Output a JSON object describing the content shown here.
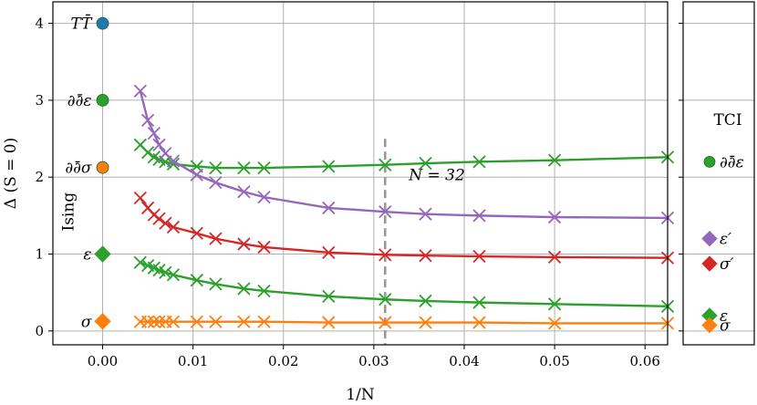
{
  "chart_data": {
    "type": "line",
    "xlabel": "1/N",
    "ylabel": "Δ  (S = 0)",
    "xlim": [
      -0.0055,
      0.0625
    ],
    "ylim": [
      -0.18,
      4.28
    ],
    "x_ticks": [
      0.0,
      0.01,
      0.02,
      0.03,
      0.04,
      0.05,
      0.06
    ],
    "x_tick_labels": [
      "0.00",
      "0.01",
      "0.02",
      "0.03",
      "0.04",
      "0.05",
      "0.06"
    ],
    "y_ticks": [
      0,
      1,
      2,
      3,
      4
    ],
    "y_tick_labels": [
      "0",
      "1",
      "2",
      "3",
      "4"
    ],
    "grid": true,
    "vline": {
      "x": 0.03125,
      "label": "N = 32"
    },
    "ising_label": "Ising",
    "colors": {
      "blue": "#1f77b4",
      "orange": "#ff7f0e",
      "green": "#2ca02c",
      "red": "#d62728",
      "purple": "#9467bd",
      "gray": "#999999"
    },
    "x": [
      0.004167,
      0.005,
      0.005682,
      0.00625,
      0.006944,
      0.007813,
      0.010417,
      0.0125,
      0.015625,
      0.017857,
      0.025,
      0.03125,
      0.035714,
      0.041667,
      0.05,
      0.0625
    ],
    "series": [
      {
        "color": "orange",
        "values": [
          0.12,
          0.12,
          0.12,
          0.12,
          0.12,
          0.12,
          0.12,
          0.12,
          0.12,
          0.12,
          0.11,
          0.11,
          0.11,
          0.11,
          0.1,
          0.1
        ]
      },
      {
        "color": "green",
        "values": [
          0.89,
          0.85,
          0.82,
          0.79,
          0.76,
          0.73,
          0.66,
          0.61,
          0.55,
          0.52,
          0.45,
          0.41,
          0.39,
          0.37,
          0.35,
          0.32
        ]
      },
      {
        "color": "red",
        "values": [
          1.73,
          1.6,
          1.51,
          1.46,
          1.4,
          1.35,
          1.27,
          1.2,
          1.13,
          1.09,
          1.02,
          0.99,
          0.98,
          0.97,
          0.96,
          0.95
        ]
      },
      {
        "color": "green",
        "values": [
          2.42,
          2.32,
          2.26,
          2.23,
          2.2,
          2.17,
          2.14,
          2.12,
          2.12,
          2.12,
          2.14,
          2.16,
          2.18,
          2.2,
          2.22,
          2.26
        ]
      },
      {
        "color": "purple",
        "values": [
          3.12,
          2.74,
          2.57,
          2.42,
          2.31,
          2.21,
          2.03,
          1.93,
          1.81,
          1.74,
          1.6,
          1.55,
          1.52,
          1.5,
          1.48,
          1.47
        ]
      }
    ],
    "ising_points": [
      {
        "label": "TT̄",
        "y": 4.0,
        "color": "blue",
        "marker": "circle"
      },
      {
        "label": "∂∂̄ε",
        "y": 3.0,
        "color": "green",
        "marker": "circle"
      },
      {
        "label": "∂∂̄σ",
        "y": 2.125,
        "color": "orange",
        "marker": "circle"
      },
      {
        "label": "ε",
        "y": 1.0,
        "color": "green",
        "marker": "diamond"
      },
      {
        "label": "σ",
        "y": 0.125,
        "color": "orange",
        "marker": "diamond"
      }
    ],
    "tci_label": "TCI",
    "tci_points": [
      {
        "label": "∂∂̄ε",
        "y": 2.2,
        "color": "green",
        "marker": "circle"
      },
      {
        "label": "ε′",
        "y": 1.2,
        "color": "purple",
        "marker": "diamond"
      },
      {
        "label": "σ′",
        "y": 0.875,
        "color": "red",
        "marker": "diamond"
      },
      {
        "label": "ε",
        "y": 0.2,
        "color": "green",
        "marker": "diamond"
      },
      {
        "label": "σ",
        "y": 0.075,
        "color": "orange",
        "marker": "diamond"
      }
    ]
  }
}
